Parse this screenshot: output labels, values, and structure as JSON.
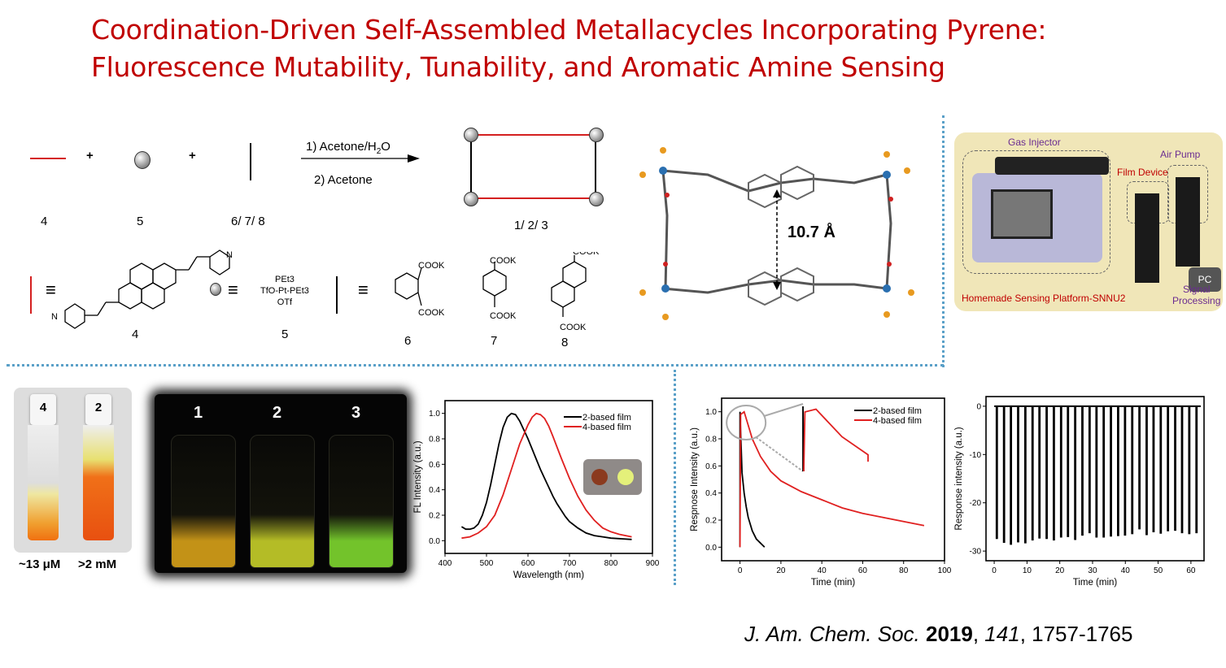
{
  "title": {
    "line1": "Coordination-Driven Self-Assembled Metallacycles Incorporating Pyrene:",
    "line2": "Fluorescence Mutability, Tunability, and Aromatic Amine Sensing"
  },
  "scheme": {
    "plus": "+",
    "step1": "1) Acetone/H",
    "step1_sub": "2",
    "step1_tail": "O",
    "step2": "2) Acetone",
    "label_4": "4",
    "label_5": "5",
    "label_678": "6/ 7/ 8",
    "label_123": "1/ 2/ 3",
    "equiv": "≡",
    "pt_top": "PEt3",
    "pt_mid": "TfO-Pt-PEt3",
    "pt_bot": "OTf",
    "cook": "COOK",
    "N": "N",
    "label_6": "6",
    "label_7": "7",
    "label_8": "8",
    "red": "#d42020"
  },
  "crystal": {
    "distance": "10.7 Å"
  },
  "platform": {
    "gas_injector": "Gas Injector",
    "air_pump": "Air Pump",
    "film_device": "Film Device",
    "pc": "PC",
    "signal": "Signal",
    "processing": "Processing",
    "caption": "Homemade Sensing Platform-SNNU2"
  },
  "vials": {
    "left_cap": "4",
    "right_cap": "2",
    "left_conc": "~13 μM",
    "right_conc": ">2 mM"
  },
  "glow": {
    "labels": [
      "1",
      "2",
      "3"
    ],
    "colors": [
      "#d8a21a",
      "#c8d02a",
      "#7fd830"
    ]
  },
  "chart_data": [
    {
      "type": "line",
      "xlabel": "Wavelength (nm)",
      "ylabel": "FL Intensity (a.u.)",
      "xlim": [
        400,
        900
      ],
      "ylim": [
        -0.1,
        1.1
      ],
      "xticks": [
        "400",
        "500",
        "600",
        "700",
        "800",
        "900"
      ],
      "yticks": [
        "0.0",
        "0.2",
        "0.4",
        "0.6",
        "0.8",
        "1.0"
      ],
      "legend": "top-right",
      "series": [
        {
          "name": "2-based film",
          "color": "#000000",
          "x": [
            440,
            450,
            460,
            470,
            480,
            490,
            500,
            510,
            520,
            530,
            540,
            550,
            560,
            570,
            580,
            590,
            600,
            610,
            620,
            630,
            640,
            650,
            660,
            670,
            680,
            690,
            700,
            720,
            740,
            760,
            780,
            800,
            850
          ],
          "y": [
            0.11,
            0.09,
            0.09,
            0.1,
            0.13,
            0.2,
            0.3,
            0.44,
            0.6,
            0.76,
            0.89,
            0.97,
            1.0,
            0.99,
            0.94,
            0.87,
            0.8,
            0.72,
            0.64,
            0.56,
            0.49,
            0.42,
            0.35,
            0.29,
            0.24,
            0.19,
            0.15,
            0.1,
            0.06,
            0.04,
            0.03,
            0.02,
            0.01
          ]
        },
        {
          "name": "4-based film",
          "color": "#e02020",
          "x": [
            440,
            460,
            480,
            500,
            520,
            540,
            560,
            580,
            600,
            610,
            620,
            630,
            640,
            650,
            660,
            680,
            700,
            720,
            740,
            760,
            780,
            800,
            820,
            850
          ],
          "y": [
            0.02,
            0.03,
            0.06,
            0.11,
            0.2,
            0.36,
            0.56,
            0.76,
            0.91,
            0.97,
            1.0,
            0.99,
            0.96,
            0.9,
            0.82,
            0.65,
            0.49,
            0.35,
            0.24,
            0.16,
            0.1,
            0.07,
            0.05,
            0.03
          ]
        }
      ],
      "inset_colors": [
        "#8b3a1e",
        "#e4f07a"
      ]
    },
    {
      "type": "line",
      "xlabel": "Time (min)",
      "ylabel": "Respnose Intensity (a.u.)",
      "xlim": [
        -9,
        100
      ],
      "ylim": [
        -0.1,
        1.1
      ],
      "xticks": [
        "0",
        "20",
        "40",
        "60",
        "80",
        "100"
      ],
      "yticks": [
        "0.0",
        "0.2",
        "0.4",
        "0.6",
        "0.8",
        "1.0"
      ],
      "legend": "top-right",
      "series": [
        {
          "name": "2-based film",
          "color": "#000000",
          "x": [
            0,
            0,
            1,
            2,
            3,
            4,
            6,
            8,
            10,
            12
          ],
          "y": [
            0,
            1.0,
            0.55,
            0.4,
            0.3,
            0.22,
            0.12,
            0.06,
            0.03,
            0
          ]
        },
        {
          "name": "4-based film",
          "color": "#e02020",
          "x": [
            0,
            0.3,
            2,
            4,
            6,
            10,
            15,
            20,
            30,
            40,
            50,
            60,
            70,
            80,
            90
          ],
          "y": [
            0,
            0.98,
            1.0,
            0.9,
            0.8,
            0.67,
            0.56,
            0.49,
            0.41,
            0.35,
            0.29,
            0.25,
            0.22,
            0.19,
            0.16
          ]
        }
      ]
    },
    {
      "type": "line",
      "xlabel": "Time (min)",
      "ylabel": "Response intensity (a.u.)",
      "xlim": [
        -2.5,
        64
      ],
      "ylim": [
        -32,
        2
      ],
      "xticks": [
        "0",
        "10",
        "20",
        "30",
        "40",
        "50",
        "60"
      ],
      "yticks": [
        "0",
        "-10",
        "-20",
        "-30"
      ],
      "series": [
        {
          "color": "#000000",
          "spike_times": [
            0.8,
            3.0,
            5.1,
            7.3,
            9.5,
            11.7,
            13.8,
            16.0,
            18.2,
            20.4,
            22.5,
            24.7,
            26.9,
            29.1,
            31.2,
            33.4,
            35.6,
            37.8,
            39.9,
            42.1,
            44.3,
            46.5,
            48.6,
            50.8,
            53.0,
            55.2,
            57.3,
            59.5,
            61.7
          ],
          "spike_minima": [
            -27.5,
            -28.3,
            -28.7,
            -28.2,
            -28.4,
            -27.8,
            -27.4,
            -27.5,
            -27.8,
            -27.2,
            -27.1,
            -27.7,
            -26.8,
            -26.3,
            -27.2,
            -27.2,
            -27.0,
            -26.9,
            -26.8,
            -26.5,
            -25.5,
            -26.7,
            -26.1,
            -26.4,
            -25.9,
            -25.8,
            -26.3,
            -26.5,
            -26.3
          ],
          "baseline": 0
        }
      ]
    }
  ],
  "citation": {
    "journal": "J. Am. Chem. Soc.",
    "year": "2019",
    "volume": "141",
    "pages": ", 1757-1765",
    "comma": ", "
  }
}
